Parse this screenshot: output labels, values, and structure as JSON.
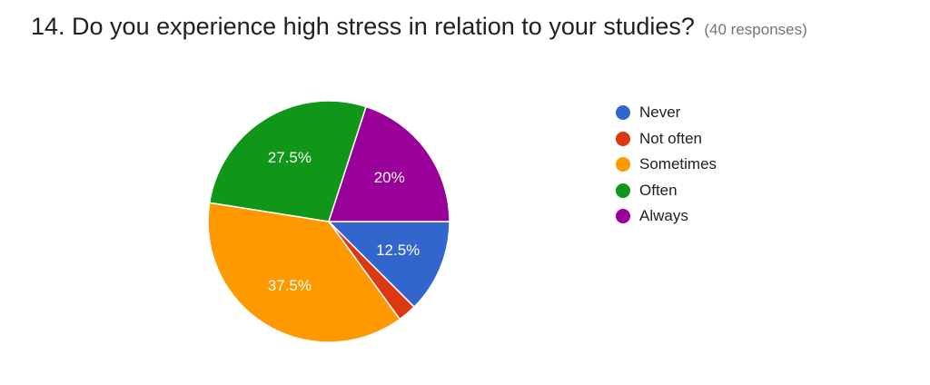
{
  "question": {
    "title": "14. Do you experience high stress in relation to your studies?",
    "responses": "(40 responses)"
  },
  "chart_data": {
    "type": "pie",
    "categories": [
      "Never",
      "Not often",
      "Sometimes",
      "Often",
      "Always"
    ],
    "values": [
      12.5,
      2.5,
      37.5,
      27.5,
      20
    ],
    "value_labels": [
      "12.5%",
      "",
      "37.5%",
      "27.5%",
      "20%"
    ],
    "colors": [
      "#3366cc",
      "#dc3912",
      "#ff9900",
      "#109618",
      "#990099"
    ],
    "label_color": "#ffffff",
    "legend_position": "right",
    "start": "3 o'clock, clockwise"
  }
}
